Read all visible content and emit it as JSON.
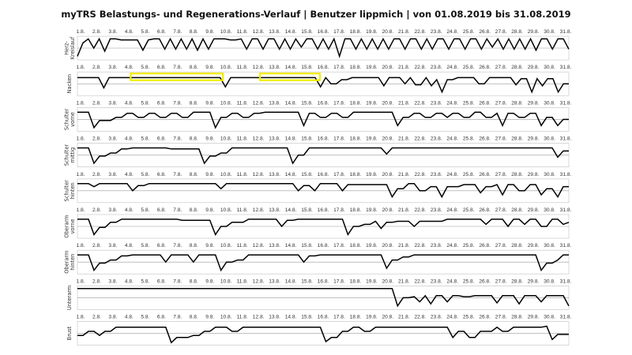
{
  "title": "myTRS Belastungs- und Regenerations-Verlauf | Benutzer lippmich | von 01.08.2019 bis 31.08.2019",
  "colors": {
    "line": "#000000",
    "highlight": "#f2ec00",
    "frame": "#c8c8c8",
    "baseline": "#9a9a9a"
  },
  "chart_data": {
    "type": "line",
    "title": "myTRS Belastungs- und Regenerations-Verlauf | Benutzer lippmich | von 01.08.2019 bis 31.08.2019",
    "categories": [
      "1.8.",
      "2.8.",
      "3.8.",
      "4.8.",
      "5.8.",
      "6.8.",
      "7.8.",
      "8.8.",
      "9.8.",
      "10.8.",
      "11.8.",
      "12.8.",
      "13.8.",
      "14.8.",
      "15.8.",
      "16.8.",
      "17.8.",
      "18.8.",
      "19.8.",
      "20.8.",
      "21.8.",
      "22.8.",
      "23.8.",
      "24.8.",
      "25.8.",
      "26.8.",
      "27.8.",
      "28.8.",
      "29.8.",
      "30.8.",
      "31.8."
    ],
    "ylim": [
      0,
      1
    ],
    "grid": false,
    "panels": [
      {
        "label_lines": [
          "Herz-",
          "Kreislauf"
        ],
        "values": [
          0.1,
          0.75,
          0.95,
          0.5,
          0.95,
          0.35,
          0.95,
          0.95,
          0.9,
          0.9,
          0.9,
          0.9,
          0.4,
          0.9,
          0.95,
          0.95,
          0.45,
          0.95,
          0.45,
          0.95,
          0.45,
          0.95,
          0.4,
          0.95,
          0.45,
          0.95,
          0.95,
          0.95,
          0.9,
          0.9,
          0.95,
          0.45,
          0.95,
          0.95,
          0.45,
          0.95,
          0.95,
          0.45,
          0.95,
          0.45,
          0.95,
          0.55,
          0.95,
          0.95,
          0.45,
          0.95,
          0.45,
          0.95,
          0.1,
          0.95,
          0.95,
          0.45,
          0.95,
          0.45,
          0.95,
          0.45,
          0.95,
          0.45,
          0.95,
          0.95,
          0.45,
          0.95,
          0.95,
          0.45,
          0.95,
          0.45,
          0.95,
          0.95,
          0.45,
          0.95,
          0.95,
          0.45,
          0.95,
          0.95,
          0.45,
          0.95,
          0.55,
          0.95,
          0.45,
          0.95,
          0.45,
          0.95,
          0.45,
          0.95,
          0.4,
          0.95,
          0.95,
          0.45,
          0.95,
          0.95,
          0.45
        ]
      },
      {
        "label_lines": [
          "Nacken"
        ],
        "values": [
          0.8,
          0.8,
          0.8,
          0.8,
          0.8,
          0.3,
          0.8,
          0.8,
          0.8,
          0.8,
          0.8,
          0.8,
          0.8,
          0.8,
          0.8,
          0.8,
          0.8,
          0.8,
          0.8,
          0.8,
          0.8,
          0.8,
          0.8,
          0.8,
          0.8,
          0.8,
          0.8,
          0.8,
          0.35,
          0.8,
          0.8,
          0.8,
          0.8,
          0.8,
          0.8,
          0.8,
          0.8,
          0.8,
          0.8,
          0.8,
          0.8,
          0.8,
          0.8,
          0.8,
          0.8,
          0.8,
          0.35,
          0.8,
          0.5,
          0.5,
          0.7,
          0.7,
          0.8,
          0.8,
          0.8,
          0.8,
          0.8,
          0.8,
          0.4,
          0.8,
          0.8,
          0.8,
          0.5,
          0.8,
          0.45,
          0.45,
          0.8,
          0.4,
          0.7,
          0.1,
          0.7,
          0.7,
          0.8,
          0.8,
          0.8,
          0.8,
          0.5,
          0.5,
          0.8,
          0.8,
          0.8,
          0.8,
          0.8,
          0.45,
          0.75,
          0.75,
          0.1,
          0.75,
          0.4,
          0.75,
          0.75,
          0.1,
          0.5,
          0.5
        ]
      },
      {
        "label_lines": [
          "Schulter",
          "vorne"
        ],
        "values": [
          0.85,
          0.85,
          0.85,
          0.1,
          0.45,
          0.45,
          0.45,
          0.6,
          0.6,
          0.8,
          0.8,
          0.6,
          0.6,
          0.8,
          0.8,
          0.6,
          0.6,
          0.8,
          0.8,
          0.6,
          0.6,
          0.85,
          0.85,
          0.85,
          0.85,
          0.1,
          0.6,
          0.6,
          0.8,
          0.8,
          0.6,
          0.6,
          0.8,
          0.8,
          0.85,
          0.85,
          0.85,
          0.85,
          0.85,
          0.85,
          0.85,
          0.2,
          0.8,
          0.8,
          0.6,
          0.6,
          0.8,
          0.8,
          0.6,
          0.6,
          0.85,
          0.85,
          0.85,
          0.85,
          0.85,
          0.85,
          0.85,
          0.85,
          0.2,
          0.6,
          0.6,
          0.8,
          0.8,
          0.6,
          0.6,
          0.8,
          0.8,
          0.6,
          0.8,
          0.8,
          0.6,
          0.6,
          0.85,
          0.85,
          0.6,
          0.6,
          0.8,
          0.2,
          0.8,
          0.8,
          0.6,
          0.6,
          0.8,
          0.8,
          0.2,
          0.6,
          0.6,
          0.2,
          0.5,
          0.5
        ]
      },
      {
        "label_lines": [
          "Schulter",
          "mittig"
        ],
        "values": [
          0.85,
          0.85,
          0.85,
          0.1,
          0.45,
          0.45,
          0.6,
          0.6,
          0.8,
          0.8,
          0.85,
          0.85,
          0.85,
          0.85,
          0.85,
          0.85,
          0.85,
          0.8,
          0.8,
          0.8,
          0.8,
          0.8,
          0.8,
          0.1,
          0.45,
          0.45,
          0.6,
          0.6,
          0.85,
          0.85,
          0.85,
          0.85,
          0.85,
          0.85,
          0.85,
          0.85,
          0.85,
          0.85,
          0.85,
          0.1,
          0.5,
          0.5,
          0.85,
          0.85,
          0.85,
          0.85,
          0.85,
          0.85,
          0.85,
          0.85,
          0.85,
          0.85,
          0.85,
          0.85,
          0.85,
          0.85,
          0.55,
          0.85,
          0.85,
          0.85,
          0.85,
          0.85,
          0.85,
          0.85,
          0.85,
          0.85,
          0.85,
          0.85,
          0.85,
          0.85,
          0.85,
          0.85,
          0.85,
          0.85,
          0.85,
          0.85,
          0.85,
          0.85,
          0.85,
          0.85,
          0.85,
          0.85,
          0.85,
          0.85,
          0.85,
          0.85,
          0.85,
          0.4,
          0.7,
          0.7
        ]
      },
      {
        "label_lines": [
          "Schulter",
          "hinten"
        ],
        "values": [
          0.85,
          0.85,
          0.85,
          0.7,
          0.85,
          0.85,
          0.85,
          0.85,
          0.85,
          0.85,
          0.5,
          0.75,
          0.75,
          0.85,
          0.85,
          0.85,
          0.85,
          0.85,
          0.85,
          0.85,
          0.85,
          0.85,
          0.85,
          0.85,
          0.85,
          0.85,
          0.6,
          0.85,
          0.85,
          0.85,
          0.85,
          0.85,
          0.85,
          0.85,
          0.85,
          0.85,
          0.85,
          0.85,
          0.85,
          0.85,
          0.5,
          0.75,
          0.75,
          0.5,
          0.85,
          0.85,
          0.85,
          0.85,
          0.5,
          0.8,
          0.8,
          0.8,
          0.8,
          0.8,
          0.8,
          0.8,
          0.8,
          0.2,
          0.6,
          0.6,
          0.85,
          0.85,
          0.5,
          0.5,
          0.7,
          0.7,
          0.2,
          0.7,
          0.7,
          0.7,
          0.8,
          0.8,
          0.8,
          0.4,
          0.7,
          0.7,
          0.8,
          0.3,
          0.8,
          0.8,
          0.5,
          0.5,
          0.8,
          0.8,
          0.3,
          0.6,
          0.6,
          0.2,
          0.7,
          0.7
        ]
      },
      {
        "label_lines": [
          "Oberarm",
          "vorne"
        ],
        "values": [
          0.85,
          0.85,
          0.85,
          0.1,
          0.45,
          0.45,
          0.7,
          0.7,
          0.85,
          0.85,
          0.85,
          0.85,
          0.85,
          0.85,
          0.85,
          0.85,
          0.85,
          0.85,
          0.85,
          0.8,
          0.8,
          0.8,
          0.8,
          0.8,
          0.8,
          0.1,
          0.5,
          0.5,
          0.7,
          0.7,
          0.7,
          0.85,
          0.85,
          0.85,
          0.85,
          0.85,
          0.85,
          0.5,
          0.8,
          0.8,
          0.85,
          0.85,
          0.85,
          0.85,
          0.85,
          0.85,
          0.85,
          0.85,
          0.85,
          0.1,
          0.5,
          0.5,
          0.6,
          0.6,
          0.75,
          0.4,
          0.7,
          0.7,
          0.75,
          0.75,
          0.75,
          0.5,
          0.75,
          0.75,
          0.75,
          0.75,
          0.75,
          0.85,
          0.85,
          0.85,
          0.85,
          0.85,
          0.85,
          0.85,
          0.6,
          0.85,
          0.85,
          0.85,
          0.5,
          0.85,
          0.85,
          0.6,
          0.85,
          0.85,
          0.5,
          0.5,
          0.85,
          0.85,
          0.6,
          0.7
        ]
      },
      {
        "label_lines": [
          "Oberarm",
          "hinten"
        ],
        "values": [
          0.85,
          0.85,
          0.85,
          0.1,
          0.45,
          0.45,
          0.6,
          0.6,
          0.8,
          0.8,
          0.85,
          0.85,
          0.85,
          0.85,
          0.85,
          0.85,
          0.5,
          0.85,
          0.85,
          0.85,
          0.85,
          0.5,
          0.85,
          0.85,
          0.85,
          0.85,
          0.1,
          0.5,
          0.5,
          0.6,
          0.6,
          0.85,
          0.85,
          0.85,
          0.85,
          0.85,
          0.85,
          0.85,
          0.85,
          0.85,
          0.85,
          0.5,
          0.8,
          0.8,
          0.85,
          0.85,
          0.85,
          0.85,
          0.85,
          0.85,
          0.85,
          0.85,
          0.85,
          0.85,
          0.85,
          0.85,
          0.2,
          0.6,
          0.6,
          0.75,
          0.75,
          0.85,
          0.85,
          0.85,
          0.85,
          0.85,
          0.85,
          0.85,
          0.85,
          0.85,
          0.85,
          0.85,
          0.85,
          0.85,
          0.85,
          0.85,
          0.85,
          0.85,
          0.85,
          0.85,
          0.85,
          0.85,
          0.85,
          0.85,
          0.1,
          0.45,
          0.45,
          0.6,
          0.85,
          0.85
        ]
      },
      {
        "label_lines": [
          "Unterarm"
        ],
        "values": [
          0.95,
          0.95,
          0.95,
          0.95,
          0.95,
          0.95,
          0.95,
          0.95,
          0.95,
          0.95,
          0.95,
          0.95,
          0.95,
          0.95,
          0.95,
          0.95,
          0.95,
          0.95,
          0.95,
          0.95,
          0.95,
          0.95,
          0.95,
          0.95,
          0.95,
          0.95,
          0.95,
          0.95,
          0.95,
          0.95,
          0.95,
          0.95,
          0.95,
          0.95,
          0.95,
          0.95,
          0.95,
          0.95,
          0.95,
          0.95,
          0.95,
          0.95,
          0.95,
          0.95,
          0.95,
          0.95,
          0.95,
          0.95,
          0.95,
          0.95,
          0.95,
          0.95,
          0.95,
          0.95,
          0.95,
          0.95,
          0.95,
          0.95,
          0.1,
          0.5,
          0.5,
          0.55,
          0.3,
          0.6,
          0.2,
          0.6,
          0.6,
          0.3,
          0.6,
          0.6,
          0.55,
          0.55,
          0.6,
          0.6,
          0.6,
          0.6,
          0.25,
          0.6,
          0.6,
          0.6,
          0.2,
          0.6,
          0.6,
          0.6,
          0.3,
          0.6,
          0.6,
          0.6,
          0.6,
          0.1
        ]
      },
      {
        "label_lines": [
          "Brust"
        ],
        "values": [
          0.4,
          0.4,
          0.6,
          0.6,
          0.4,
          0.6,
          0.6,
          0.8,
          0.8,
          0.8,
          0.8,
          0.8,
          0.8,
          0.8,
          0.8,
          0.8,
          0.8,
          0.05,
          0.3,
          0.3,
          0.3,
          0.4,
          0.4,
          0.6,
          0.6,
          0.8,
          0.8,
          0.8,
          0.6,
          0.6,
          0.8,
          0.8,
          0.8,
          0.8,
          0.8,
          0.8,
          0.8,
          0.8,
          0.8,
          0.8,
          0.8,
          0.8,
          0.8,
          0.8,
          0.8,
          0.1,
          0.3,
          0.3,
          0.6,
          0.6,
          0.8,
          0.8,
          0.6,
          0.6,
          0.8,
          0.8,
          0.8,
          0.8,
          0.8,
          0.8,
          0.8,
          0.8,
          0.8,
          0.8,
          0.8,
          0.8,
          0.8,
          0.8,
          0.3,
          0.6,
          0.6,
          0.3,
          0.3,
          0.6,
          0.6,
          0.6,
          0.8,
          0.6,
          0.6,
          0.8,
          0.8,
          0.8,
          0.8,
          0.8,
          0.8,
          0.85,
          0.2,
          0.45,
          0.45,
          0.45
        ]
      }
    ],
    "annotations": [
      {
        "type": "highlight-box",
        "panel": 1,
        "from": "4.8.",
        "to": "10.8."
      },
      {
        "type": "highlight-box",
        "panel": 1,
        "from": "12.8.",
        "to": "16.8."
      }
    ]
  }
}
